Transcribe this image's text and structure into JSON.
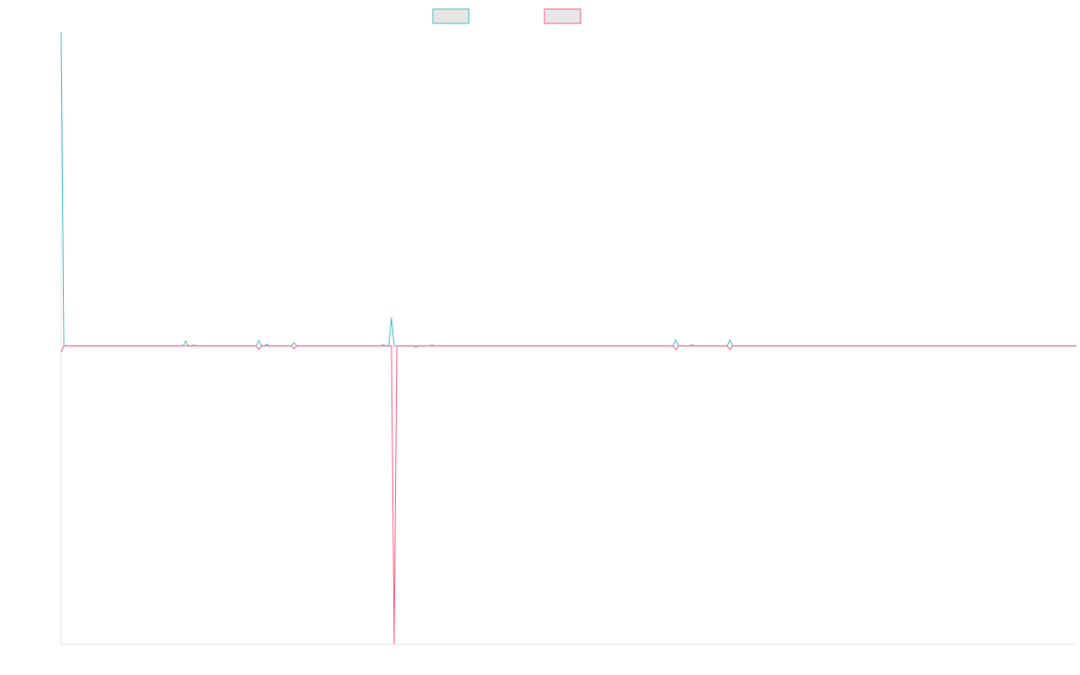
{
  "chart_data": {
    "type": "line",
    "title": "",
    "xlabel": "",
    "ylabel": "",
    "grid": false,
    "legend": {
      "placement": "top-center"
    },
    "x": [
      0,
      1,
      2,
      3,
      4,
      5,
      6,
      7,
      8,
      9,
      10,
      11,
      12,
      13,
      14,
      15,
      16,
      17,
      18,
      19,
      20,
      21,
      22,
      23,
      24,
      25,
      26,
      27,
      28,
      29,
      30,
      31,
      32,
      33,
      34,
      35,
      36,
      37,
      38,
      39,
      40,
      41,
      42,
      43,
      44,
      45,
      46,
      47,
      48,
      49,
      50,
      51,
      52,
      53,
      54,
      55,
      56,
      57,
      58,
      59,
      60,
      61,
      62,
      63,
      64,
      65,
      66,
      67,
      68,
      69,
      70,
      71,
      72,
      73,
      74,
      75,
      76,
      77,
      78,
      79,
      80,
      81,
      82,
      83,
      84,
      85,
      86,
      87,
      88,
      89,
      90,
      91,
      92,
      93,
      94,
      95,
      96,
      97,
      98,
      99,
      100,
      101,
      102,
      103,
      104,
      105,
      106,
      107,
      108,
      109,
      110,
      111,
      112,
      113,
      114,
      115,
      116,
      117,
      118,
      119,
      120,
      121,
      122,
      123,
      124,
      125,
      126,
      127,
      128,
      129,
      130,
      131,
      132,
      133,
      134,
      135,
      136,
      137,
      138,
      139,
      140,
      141,
      142,
      143,
      144,
      145,
      146,
      147,
      148,
      149,
      150,
      151,
      152,
      153,
      154,
      155,
      156,
      157,
      158,
      159,
      160,
      161,
      162,
      163,
      164,
      165,
      166,
      167,
      168,
      169,
      170,
      171,
      172,
      173,
      174,
      175,
      176,
      177,
      178,
      179,
      180,
      181,
      182,
      183,
      184,
      185,
      186,
      187,
      188,
      189,
      190,
      191,
      192,
      193,
      194,
      195,
      196,
      197,
      198,
      199,
      200,
      201,
      202,
      203,
      204,
      205,
      206,
      207,
      208,
      209,
      210,
      211,
      212,
      213,
      214,
      215,
      216,
      217,
      218,
      219,
      220,
      221,
      222,
      223,
      224,
      225,
      226,
      227,
      228,
      229,
      230,
      231,
      232,
      233,
      234,
      235,
      236,
      237,
      238,
      239,
      240,
      241,
      242,
      243,
      244,
      245,
      246,
      247,
      248,
      249,
      250,
      251,
      252,
      253,
      254,
      255,
      256,
      257,
      258,
      259,
      260,
      261,
      262,
      263,
      264,
      265,
      266,
      267,
      268,
      269,
      270,
      271,
      272,
      273,
      274,
      275,
      276,
      277,
      278,
      279,
      280,
      281,
      282,
      283,
      284,
      285,
      286,
      287,
      288,
      289,
      290,
      291,
      292,
      293,
      294,
      295,
      296,
      297,
      298,
      299,
      300,
      301,
      302,
      303,
      304,
      305,
      306,
      307,
      308,
      309,
      310,
      311,
      312,
      313,
      314,
      315,
      316,
      317,
      318,
      319,
      320,
      321,
      322,
      323,
      324,
      325,
      326,
      327,
      328,
      329,
      330,
      331,
      332,
      333,
      334,
      335,
      336,
      337,
      338,
      339,
      340,
      341,
      342,
      343,
      344,
      345,
      346,
      347,
      348,
      349,
      350,
      351,
      352,
      353,
      354,
      355,
      356,
      357,
      358,
      359,
      360,
      361,
      362,
      363,
      364,
      365,
      366,
      367,
      368,
      369,
      370,
      371,
      372,
      373,
      374,
      375
    ],
    "ylim": [
      -100,
      105
    ],
    "xlim": [
      0,
      375
    ],
    "series": [
      {
        "name": "",
        "color": "#4bc0c0",
        "values": [
          105,
          0,
          0,
          0,
          0,
          0,
          0,
          0,
          0,
          0,
          0,
          0,
          0,
          0,
          0,
          0,
          0,
          0,
          0,
          0,
          0,
          0,
          0,
          0,
          0,
          0,
          0,
          0,
          0,
          0,
          0,
          0,
          0,
          0,
          0,
          0,
          0,
          0,
          0,
          0,
          0,
          0,
          0,
          0,
          0,
          0,
          1.6,
          0,
          0,
          0.3,
          0,
          0,
          0,
          0,
          0,
          0,
          0,
          0,
          0,
          0,
          0,
          0,
          0,
          0,
          0,
          0,
          0,
          0,
          0,
          0,
          0,
          0,
          0,
          1.8,
          0,
          0,
          0.6,
          0,
          0,
          0,
          0,
          0,
          0,
          0,
          0,
          0,
          1,
          0,
          0,
          0,
          0,
          0,
          0,
          0,
          0,
          0,
          0,
          0,
          0,
          0,
          0,
          0,
          0,
          0,
          0,
          0,
          0,
          0,
          0,
          0,
          0,
          0,
          0,
          0,
          0,
          0,
          0,
          0,
          0,
          0.4,
          0,
          0,
          9.5,
          0,
          0,
          0,
          0,
          0,
          0,
          0,
          0,
          0,
          0,
          0,
          0,
          0,
          0,
          0.3,
          0,
          0,
          0,
          0,
          0,
          0,
          0,
          0,
          0,
          0,
          0,
          0,
          0,
          0,
          0,
          0,
          0,
          0,
          0,
          0,
          0,
          0,
          0,
          0,
          0,
          0,
          0,
          0,
          0,
          0,
          0,
          0,
          0,
          0,
          0,
          0,
          0,
          0,
          0,
          0,
          0,
          0,
          0,
          0,
          0,
          0,
          0,
          0,
          0,
          0,
          0,
          0,
          0,
          0,
          0,
          0,
          0,
          0,
          0,
          0,
          0,
          0,
          0,
          0,
          0,
          0,
          0,
          0,
          0,
          0,
          0,
          0,
          0,
          0,
          0,
          0,
          0,
          0,
          0,
          0,
          0,
          0,
          0,
          0,
          0,
          0,
          0,
          0,
          0,
          2,
          0,
          0,
          0,
          0,
          0,
          0.4,
          0,
          0,
          0,
          0,
          0,
          0,
          0,
          0,
          0,
          0,
          0,
          0,
          0,
          2,
          0,
          0,
          0,
          0,
          0,
          0,
          0,
          0,
          0,
          0,
          0,
          0,
          0,
          0,
          0,
          0,
          0,
          0,
          0,
          0,
          0,
          0,
          0,
          0,
          0,
          0,
          0,
          0,
          0,
          0,
          0,
          0,
          0,
          0,
          0,
          0,
          0,
          0,
          0,
          0,
          0,
          0,
          0,
          0,
          0,
          0,
          0,
          0,
          0,
          0,
          0,
          0,
          0,
          0,
          0,
          0,
          0,
          0,
          0,
          0,
          0,
          0,
          0,
          0,
          0,
          0,
          0,
          0,
          0,
          0,
          0,
          0,
          0,
          0,
          0,
          0,
          0,
          0,
          0,
          0,
          0,
          0,
          0,
          0,
          0,
          0,
          0,
          0,
          0,
          0,
          0,
          0,
          0,
          0,
          0,
          0,
          0,
          0,
          0,
          0,
          0,
          0,
          0,
          0,
          0,
          0,
          0,
          0,
          0,
          0,
          0,
          0,
          0,
          0,
          0,
          0,
          0,
          0,
          0,
          0,
          0,
          0,
          0,
          0,
          0,
          0,
          0,
          0
        ]
      },
      {
        "name": "",
        "color": "#ff6384",
        "values": [
          -2,
          0,
          0,
          0,
          0,
          0,
          0,
          0,
          0,
          0,
          0,
          0,
          0,
          0,
          0,
          0,
          0,
          0,
          0,
          0,
          0,
          0,
          0,
          0,
          0,
          0,
          0,
          0,
          0,
          0,
          0,
          0,
          0,
          0,
          0,
          0,
          0,
          0,
          0,
          0,
          0,
          0,
          0,
          0,
          0,
          0,
          0,
          0,
          0,
          0,
          0,
          0,
          0,
          0,
          0,
          0,
          0,
          0,
          0,
          0,
          0,
          0,
          0,
          0,
          0,
          0,
          0,
          0,
          0,
          0,
          0,
          0,
          0,
          -1.2,
          0,
          0,
          0,
          0,
          0,
          0,
          0,
          0,
          0,
          0,
          0,
          0,
          -1,
          0,
          0,
          0,
          0,
          0,
          0,
          0,
          0,
          0,
          0,
          0,
          0,
          0,
          0,
          0,
          0,
          0,
          0,
          0,
          0,
          0,
          0,
          0,
          0,
          0,
          0,
          0,
          0,
          0,
          0,
          0,
          0,
          0,
          0,
          0,
          0,
          -100,
          0,
          0,
          0,
          0,
          0,
          0,
          0,
          -0.4,
          0,
          0,
          0,
          0,
          0,
          0,
          0,
          0,
          0,
          0,
          0,
          0,
          0,
          0,
          0,
          0,
          0,
          0,
          0,
          0,
          0,
          0,
          0,
          0,
          0,
          0,
          0,
          0,
          0,
          0,
          0,
          0,
          0,
          0,
          0,
          0,
          0,
          0,
          0,
          0,
          0,
          0,
          0,
          0,
          0,
          0,
          0,
          0,
          0,
          0,
          0,
          0,
          0,
          0,
          0,
          0,
          0,
          0,
          0,
          0,
          0,
          0,
          0,
          0,
          0,
          0,
          0,
          0,
          0,
          0,
          0,
          0,
          0,
          0,
          0,
          0,
          0,
          0,
          0,
          0,
          0,
          0,
          0,
          0,
          0,
          0,
          0,
          0,
          0,
          0,
          0,
          0,
          0,
          0,
          0,
          -1.2,
          0,
          0,
          0,
          0,
          0,
          0,
          0,
          0,
          0,
          0,
          0,
          0,
          0,
          0,
          0,
          0,
          0,
          0,
          0,
          -1.2,
          0,
          0,
          0,
          0,
          0,
          0,
          0,
          0,
          0,
          0,
          0,
          0,
          0,
          0,
          0,
          0,
          0,
          0,
          0,
          0,
          0,
          0,
          0,
          0,
          0,
          0,
          0,
          0,
          0,
          0,
          0,
          0,
          0,
          0,
          0,
          0,
          0,
          0,
          0,
          0,
          0,
          0,
          0,
          0,
          0,
          0,
          0,
          0,
          0,
          0,
          0,
          0,
          0,
          0,
          0,
          0,
          0,
          0,
          0,
          0,
          0,
          0,
          0,
          0,
          0,
          0,
          0,
          0,
          0,
          0,
          0,
          0,
          0,
          0,
          0,
          0,
          0,
          0,
          0,
          0,
          0,
          0,
          0,
          0,
          0,
          0,
          0,
          0,
          0,
          0,
          0,
          0,
          0,
          0,
          0,
          0,
          0,
          0,
          0,
          0,
          0,
          0,
          0,
          0,
          0,
          0,
          0,
          0,
          0,
          0,
          0,
          0,
          0,
          0,
          0,
          0,
          0,
          0,
          0,
          0,
          0,
          0,
          0,
          0,
          0,
          0,
          0,
          0
        ]
      }
    ]
  }
}
